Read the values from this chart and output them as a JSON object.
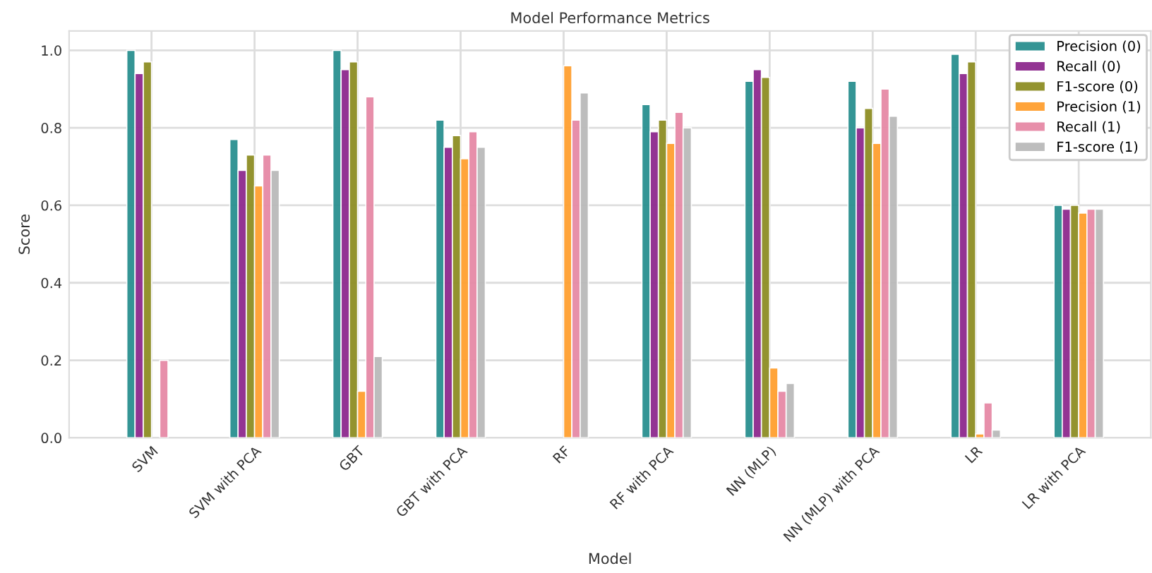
{
  "chart_data": {
    "type": "bar",
    "title": "Model Performance Metrics",
    "xlabel": "Model",
    "ylabel": "Score",
    "categories": [
      "SVM",
      "SVM with PCA",
      "GBT",
      "GBT with PCA",
      "RF",
      "RF with PCA",
      "NN (MLP)",
      "NN (MLP) with PCA",
      "LR",
      "LR with PCA"
    ],
    "series": [
      {
        "name": "Precision (0)",
        "color": "#2a9090",
        "values": [
          1.0,
          0.77,
          1.0,
          0.82,
          null,
          0.86,
          0.92,
          0.92,
          0.99,
          0.6
        ]
      },
      {
        "name": "Recall (0)",
        "color": "#8e2a8e",
        "values": [
          0.94,
          0.69,
          0.95,
          0.75,
          null,
          0.79,
          0.95,
          0.8,
          0.94,
          0.59
        ]
      },
      {
        "name": "F1-score (0)",
        "color": "#8e8e24",
        "values": [
          0.97,
          0.73,
          0.97,
          0.78,
          null,
          0.82,
          0.93,
          0.85,
          0.97,
          0.6
        ]
      },
      {
        "name": "Precision (1)",
        "color": "#ffa030",
        "values": [
          null,
          0.65,
          0.12,
          0.72,
          0.96,
          0.76,
          0.18,
          0.76,
          0.01,
          0.58
        ]
      },
      {
        "name": "Recall (1)",
        "color": "#e68aa6",
        "values": [
          0.2,
          0.73,
          0.88,
          0.79,
          0.82,
          0.84,
          0.12,
          0.9,
          0.09,
          0.59
        ]
      },
      {
        "name": "F1-score (1)",
        "color": "#bababa",
        "values": [
          null,
          0.69,
          0.21,
          0.75,
          0.89,
          0.8,
          0.14,
          0.83,
          0.02,
          0.59
        ]
      }
    ],
    "ylim": [
      0,
      1.05
    ],
    "yticks": [
      {
        "value": 0,
        "label": "0.0"
      },
      {
        "value": 0.2,
        "label": "0.2"
      },
      {
        "value": 0.4,
        "label": "0.4"
      },
      {
        "value": 0.6,
        "label": "0.6"
      },
      {
        "value": 0.8,
        "label": "0.8"
      },
      {
        "value": 1.0,
        "label": "1.0"
      }
    ],
    "grid": true,
    "legend": "top right"
  }
}
